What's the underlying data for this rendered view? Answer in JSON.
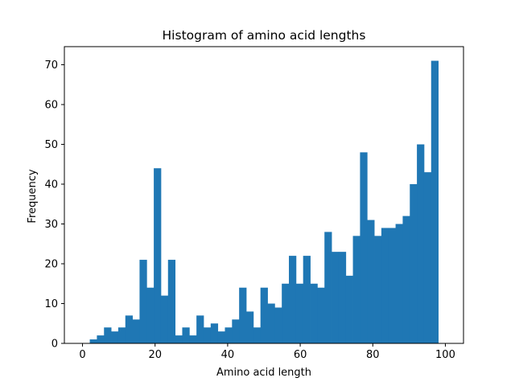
{
  "chart_data": {
    "type": "bar",
    "title": "Histogram of amino acid lengths",
    "xlabel": "Amino acid length",
    "ylabel": "Frequency",
    "xlim": [
      -5,
      105
    ],
    "ylim": [
      0,
      74.55
    ],
    "xticks": [
      0,
      20,
      40,
      60,
      80,
      100
    ],
    "yticks": [
      0,
      10,
      20,
      30,
      40,
      50,
      60,
      70
    ],
    "bar_color": "#1f77b4",
    "bin_start": 2,
    "bin_width": 1.96,
    "values": [
      1,
      2,
      4,
      3,
      4,
      7,
      6,
      21,
      14,
      44,
      12,
      21,
      2,
      4,
      2,
      7,
      4,
      5,
      3,
      4,
      6,
      14,
      8,
      4,
      14,
      10,
      9,
      15,
      22,
      15,
      22,
      15,
      14,
      28,
      23,
      23,
      17,
      27,
      48,
      31,
      27,
      29,
      29,
      30,
      32,
      40,
      50,
      43,
      71
    ],
    "grid": false,
    "legend": "none"
  }
}
